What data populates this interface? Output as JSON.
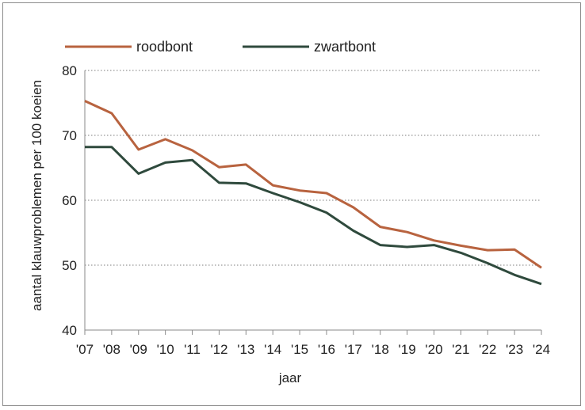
{
  "chart_data": {
    "type": "line",
    "categories": [
      "'07",
      "'08",
      "'09",
      "'10",
      "'11",
      "'12",
      "'13",
      "'14",
      "'15",
      "'16",
      "'17",
      "'18",
      "'19",
      "'20",
      "'21",
      "'22",
      "'23",
      "'24"
    ],
    "tick_labels": [
      "'07",
      "'08",
      "'09",
      "'10",
      "'11",
      "'12",
      "'13",
      "'14",
      "'15",
      "'16",
      "'17",
      "'18",
      "'19",
      "'20",
      "'21",
      "'22",
      "'23",
      "'24"
    ],
    "series": [
      {
        "name": "roodbont",
        "color": "#b8633f",
        "values": [
          75.3,
          73.4,
          67.8,
          69.4,
          67.7,
          65.1,
          65.5,
          62.3,
          61.5,
          61.1,
          58.9,
          55.9,
          55.1,
          53.8,
          53.0,
          52.3,
          52.4,
          49.6
        ]
      },
      {
        "name": "zwartbont",
        "color": "#2f4a3d",
        "values": [
          68.2,
          68.2,
          64.1,
          65.8,
          66.2,
          62.7,
          62.6,
          61.1,
          59.7,
          58.1,
          55.3,
          53.1,
          52.8,
          53.1,
          51.9,
          50.3,
          48.5,
          47.1
        ]
      }
    ],
    "ylabel": "aantal klauwproblemen per 100 koeien",
    "xlabel": "jaar",
    "ylim": [
      40,
      80
    ],
    "yticks": [
      40,
      50,
      60,
      70,
      80
    ],
    "grid": "horizontal dotted",
    "legend": "top-left"
  }
}
